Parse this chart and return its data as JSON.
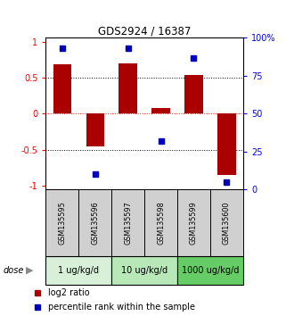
{
  "title": "GDS2924 / 16387",
  "samples": [
    "GSM135595",
    "GSM135596",
    "GSM135597",
    "GSM135598",
    "GSM135599",
    "GSM135600"
  ],
  "log2_ratio": [
    0.68,
    -0.45,
    0.7,
    0.08,
    0.54,
    -0.85
  ],
  "percentile_rank": [
    93,
    10,
    93,
    32,
    87,
    5
  ],
  "ylim_left": [
    -1.05,
    1.05
  ],
  "ylim_right": [
    0,
    100
  ],
  "left_ticks": [
    -1,
    -0.5,
    0,
    0.5,
    1
  ],
  "left_tick_labels": [
    "-1",
    "-0.5",
    "0",
    "0.5",
    "1"
  ],
  "right_ticks": [
    0,
    25,
    50,
    75,
    100
  ],
  "right_tick_labels": [
    "0",
    "25",
    "50",
    "75",
    "100%"
  ],
  "dose_groups": [
    {
      "label": "1 ug/kg/d",
      "samples": [
        "GSM135595",
        "GSM135596"
      ],
      "color": "#d8f0d8"
    },
    {
      "label": "10 ug/kg/d",
      "samples": [
        "GSM135597",
        "GSM135598"
      ],
      "color": "#b8e8b8"
    },
    {
      "label": "1000 ug/kg/d",
      "samples": [
        "GSM135599",
        "GSM135600"
      ],
      "color": "#66cc66"
    }
  ],
  "dose_label": "dose",
  "bar_color": "#aa0000",
  "square_color": "#0000bb",
  "bar_width": 0.55,
  "sample_box_color": "#d0d0d0",
  "legend_red_label": "log2 ratio",
  "legend_blue_label": "percentile rank within the sample",
  "fig_width": 3.21,
  "fig_height": 3.54,
  "dpi": 100
}
